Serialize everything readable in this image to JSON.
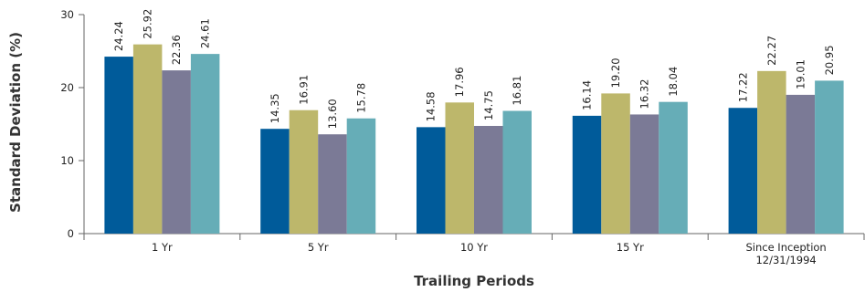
{
  "chart_data": {
    "type": "bar",
    "title": "",
    "xlabel": "Trailing Periods",
    "ylabel": "Standard Deviation (%)",
    "ylim": [
      0,
      30
    ],
    "yticks": [
      0,
      10,
      20,
      30
    ],
    "grid": false,
    "categories": [
      [
        "1 Yr"
      ],
      [
        "5 Yr"
      ],
      [
        "10 Yr"
      ],
      [
        "15 Yr"
      ],
      [
        "Since Inception",
        "12/31/1994"
      ]
    ],
    "series": [
      {
        "color": "#005b9a",
        "values": [
          24.24,
          14.35,
          14.58,
          16.14,
          17.22
        ]
      },
      {
        "color": "#bdb76b",
        "values": [
          25.92,
          16.91,
          17.96,
          19.2,
          22.27
        ]
      },
      {
        "color": "#7b7a96",
        "values": [
          22.36,
          13.6,
          14.75,
          16.32,
          19.01
        ]
      },
      {
        "color": "#66adb7",
        "values": [
          24.61,
          15.78,
          16.81,
          18.04,
          20.95
        ]
      }
    ],
    "value_format_decimals": 2
  }
}
